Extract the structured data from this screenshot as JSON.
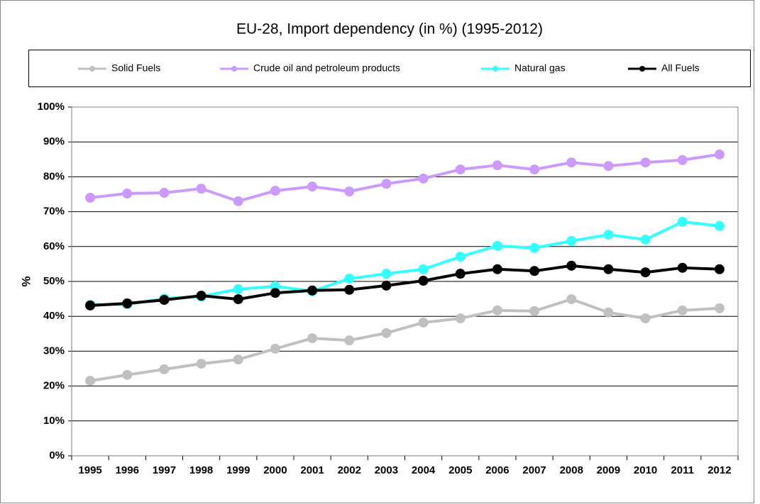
{
  "chart_data": {
    "type": "line",
    "title": "EU-28, Import dependency (in %) (1995-2012)",
    "y_label": "%",
    "categories": [
      "1995",
      "1996",
      "1997",
      "1998",
      "1999",
      "2000",
      "2001",
      "2002",
      "2003",
      "2004",
      "2005",
      "2006",
      "2007",
      "2008",
      "2009",
      "2010",
      "2011",
      "2012"
    ],
    "series": [
      {
        "name": "Solid Fuels",
        "color": "#c0c0c0",
        "values": [
          21.5,
          23.2,
          24.8,
          26.4,
          27.6,
          30.7,
          33.7,
          33.1,
          35.2,
          38.2,
          39.4,
          41.7,
          41.5,
          44.9,
          41.1,
          39.4,
          41.7,
          42.3
        ]
      },
      {
        "name": "Crude oil and petroleum products",
        "color": "#cc99ff",
        "values": [
          74.0,
          75.2,
          75.4,
          76.6,
          73.0,
          76.0,
          77.2,
          75.8,
          78.0,
          79.5,
          82.1,
          83.3,
          82.1,
          84.1,
          83.1,
          84.1,
          84.8,
          86.4
        ]
      },
      {
        "name": "Natural gas",
        "color": "#33ffff",
        "values": [
          43.3,
          43.4,
          45.1,
          45.7,
          47.8,
          48.6,
          47.2,
          50.8,
          52.2,
          53.5,
          57.1,
          60.2,
          59.6,
          61.6,
          63.4,
          62.0,
          67.1,
          65.9
        ]
      },
      {
        "name": "All Fuels",
        "color": "#000000",
        "values": [
          43.1,
          43.7,
          44.7,
          45.9,
          44.9,
          46.7,
          47.4,
          47.6,
          48.8,
          50.2,
          52.2,
          53.5,
          53.0,
          54.5,
          53.5,
          52.6,
          53.9,
          53.5
        ]
      }
    ],
    "ylim": [
      0,
      100
    ],
    "yticks": [
      {
        "value": 0,
        "label": "0%"
      },
      {
        "value": 10,
        "label": "10%"
      },
      {
        "value": 20,
        "label": "20%"
      },
      {
        "value": 30,
        "label": "30%"
      },
      {
        "value": 40,
        "label": "40%"
      },
      {
        "value": 50,
        "label": "50%"
      },
      {
        "value": 60,
        "label": "60%"
      },
      {
        "value": 70,
        "label": "70%"
      },
      {
        "value": 80,
        "label": "80%"
      },
      {
        "value": 90,
        "label": "90%"
      },
      {
        "value": 100,
        "label": "100%"
      }
    ],
    "grid": true,
    "legend": "top"
  }
}
